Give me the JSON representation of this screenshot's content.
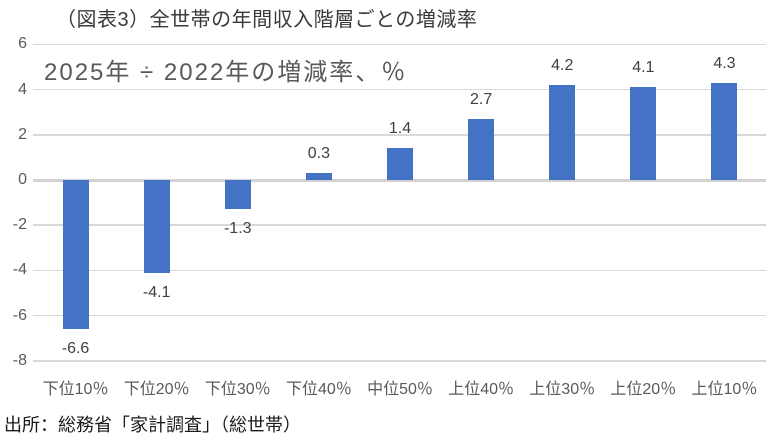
{
  "chart_data": {
    "type": "bar",
    "title": "（図表3）全世帯の年間収入階層ごとの増減率",
    "inner_label": "2025年 ÷ 2022年の増減率、％",
    "categories": [
      "下位10％",
      "下位20％",
      "下位30％",
      "下位40％",
      "中位50％",
      "上位40％",
      "上位30％",
      "上位20％",
      "上位10％"
    ],
    "values": [
      -6.6,
      -4.1,
      -1.3,
      0.3,
      1.4,
      2.7,
      4.2,
      4.1,
      4.3
    ],
    "yticks": [
      6,
      4,
      2,
      0,
      -2,
      -4,
      -6,
      -8
    ],
    "ylim": [
      -8,
      6
    ],
    "grid": true,
    "legend": "none",
    "bar_color": "#4472C4",
    "gridline_color": "#d9d9d9",
    "label_color": "#404040",
    "axis_text_color": "#595959",
    "source": "出所：総務省「家計調査」（総世帯）"
  }
}
